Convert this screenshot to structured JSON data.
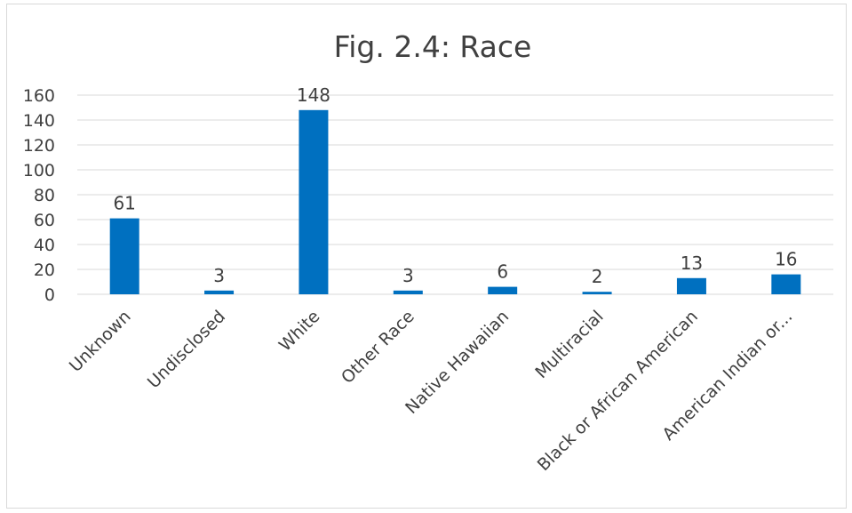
{
  "chart_data": {
    "type": "bar",
    "title": "Fig. 2.4: Race",
    "xlabel": "",
    "ylabel": "",
    "ylim": [
      0,
      160
    ],
    "yticks": [
      0,
      20,
      40,
      60,
      80,
      100,
      120,
      140,
      160
    ],
    "categories": [
      "Unknown",
      "Undisclosed",
      "White",
      "Other Race",
      "Native Hawaiian",
      "Multiracial",
      "Black or African American",
      "American Indian or..."
    ],
    "values": [
      61,
      3,
      148,
      3,
      6,
      2,
      13,
      16
    ],
    "grid": true,
    "legend": "none",
    "bar_color": "#0070c0",
    "grid_color": "#d9d9d9"
  }
}
